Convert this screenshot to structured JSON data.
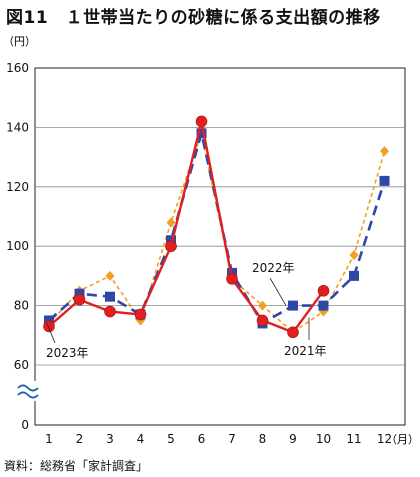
{
  "title": "図11　１世帯当たりの砂糖に係る支出額の推移",
  "source": "資料：総務省「家計調査」",
  "chart_data": {
    "type": "line",
    "title": "図11　１世帯当たりの砂糖に係る支出額の推移",
    "y_unit": "（円）",
    "x_unit": "（月）",
    "categories": [
      "1",
      "2",
      "3",
      "4",
      "5",
      "6",
      "7",
      "8",
      "9",
      "10",
      "11",
      "12"
    ],
    "yticks": [
      0,
      60,
      80,
      100,
      120,
      140,
      160
    ],
    "ylim": [
      0,
      160
    ],
    "axis_break": true,
    "grid": true,
    "series": [
      {
        "name": "2021年",
        "color": "#f0a020",
        "style": "dotted",
        "marker": "diamond",
        "values": [
          74,
          85,
          90,
          75,
          108,
          138,
          89,
          80,
          71,
          78,
          97,
          132
        ]
      },
      {
        "name": "2022年",
        "color": "#2e48a8",
        "style": "dashed",
        "marker": "square",
        "values": [
          75,
          84,
          83,
          77,
          102,
          138,
          91,
          74,
          80,
          80,
          90,
          122
        ]
      },
      {
        "name": "2023年",
        "color": "#e02020",
        "style": "solid",
        "marker": "circle",
        "values": [
          73,
          82,
          78,
          77,
          100,
          142,
          89,
          75,
          71,
          85,
          null,
          null
        ]
      }
    ]
  }
}
